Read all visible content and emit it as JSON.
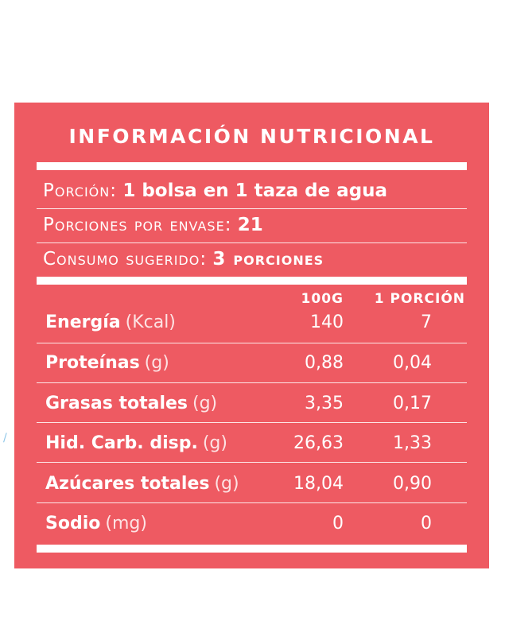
{
  "label": {
    "title": "Información Nutricional",
    "serving": [
      {
        "label": "Porción:",
        "value": "1 bolsa en 1 taza de agua"
      },
      {
        "label": "Porciones por envase:",
        "value": "21"
      },
      {
        "label": "Consumo sugerido:",
        "value": "3 porciones"
      }
    ],
    "columns": {
      "per100": "100g",
      "perServing": "1 porción"
    },
    "rows": [
      {
        "name": "Energía",
        "unit": "(Kcal)",
        "per100": "140",
        "perServing": "7"
      },
      {
        "name": "Proteínas",
        "unit": "(g)",
        "per100": "0,88",
        "perServing": "0,04"
      },
      {
        "name": "Grasas totales",
        "unit": "(g)",
        "per100": "3,35",
        "perServing": "0,17"
      },
      {
        "name": "Hid. Carb. disp.",
        "unit": "(g)",
        "per100": "26,63",
        "perServing": "1,33"
      },
      {
        "name": "Azúcares totales",
        "unit": "(g)",
        "per100": "18,04",
        "perServing": "0,90"
      },
      {
        "name": "Sodio",
        "unit": "(mg)",
        "per100": "0",
        "perServing": "0"
      }
    ]
  },
  "colors": {
    "panel": "#ee5a62",
    "text": "#ffffff"
  }
}
